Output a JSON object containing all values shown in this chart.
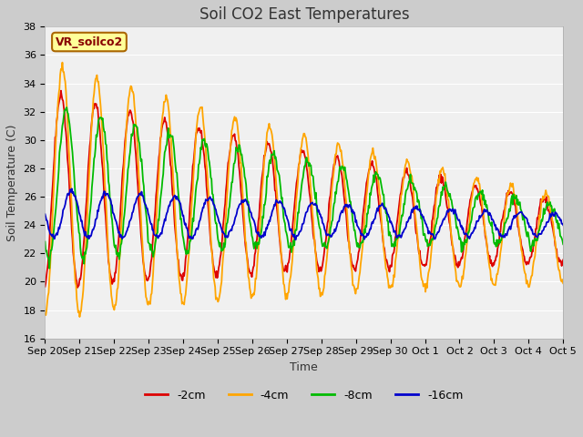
{
  "title": "Soil CO2 East Temperatures",
  "xlabel": "Time",
  "ylabel": "Soil Temperature (C)",
  "ylim": [
    16,
    38
  ],
  "x_tick_labels": [
    "Sep 20",
    "Sep 21",
    "Sep 22",
    "Sep 23",
    "Sep 24",
    "Sep 25",
    "Sep 26",
    "Sep 27",
    "Sep 28",
    "Sep 29",
    "Sep 30",
    "Oct 1",
    "Oct 2",
    "Oct 3",
    "Oct 4",
    "Oct 5"
  ],
  "legend_labels": [
    "-2cm",
    "-4cm",
    "-8cm",
    "-16cm"
  ],
  "line_colors": [
    "#dd0000",
    "#ffa500",
    "#00bb00",
    "#0000cc"
  ],
  "fig_bg_color": "#cccccc",
  "plot_bg_color": "#f0f0f0",
  "annotation_text": "VR_soilco2",
  "annotation_bg": "#ffff99",
  "annotation_border": "#aa6600",
  "grid_color": "#ffffff",
  "title_fontsize": 12,
  "axis_fontsize": 9,
  "tick_fontsize": 8,
  "legend_fontsize": 9,
  "linewidth": 1.3
}
